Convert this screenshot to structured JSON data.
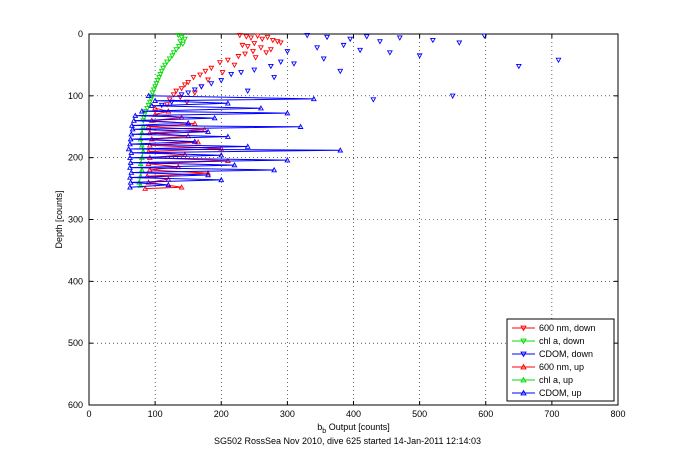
{
  "chart_data": {
    "type": "scatter",
    "xlabel_main": "b",
    "xlabel_sub": "b",
    "xlabel_rest": " Output [counts]",
    "ylabel": "Depth [counts]",
    "caption": "SG502 RossSea Nov 2010, dive 625 started 14-Jan-2011 12:14:03",
    "xlim": [
      0,
      800
    ],
    "ylim": [
      0,
      600
    ],
    "y_reversed": true,
    "grid": true,
    "legend_position": "bottom-right",
    "xticks": [
      0,
      100,
      200,
      300,
      400,
      500,
      600,
      700,
      800
    ],
    "yticks": [
      0,
      100,
      200,
      300,
      400,
      500,
      600
    ],
    "series": [
      {
        "name": "600 nm, down",
        "color": "#ff0000",
        "marker": "triangle-down",
        "line": false,
        "points": [
          [
            228,
            2
          ],
          [
            238,
            4
          ],
          [
            245,
            6
          ],
          [
            255,
            3
          ],
          [
            262,
            8
          ],
          [
            270,
            5
          ],
          [
            278,
            10
          ],
          [
            285,
            12
          ],
          [
            250,
            15
          ],
          [
            240,
            20
          ],
          [
            232,
            18
          ],
          [
            260,
            22
          ],
          [
            275,
            25
          ],
          [
            248,
            28
          ],
          [
            236,
            32
          ],
          [
            226,
            36
          ],
          [
            252,
            38
          ],
          [
            268,
            30
          ],
          [
            290,
            14
          ],
          [
            210,
            42
          ],
          [
            198,
            46
          ],
          [
            220,
            50
          ],
          [
            185,
            55
          ],
          [
            176,
            60
          ],
          [
            202,
            62
          ],
          [
            168,
            66
          ],
          [
            158,
            70
          ],
          [
            180,
            74
          ],
          [
            150,
            78
          ],
          [
            145,
            82
          ],
          [
            170,
            85
          ],
          [
            140,
            88
          ],
          [
            132,
            92
          ],
          [
            160,
            95
          ],
          [
            128,
            98
          ],
          [
            138,
            102
          ],
          [
            122,
            106
          ],
          [
            148,
            110
          ],
          [
            118,
            114
          ]
        ]
      },
      {
        "name": "chl a, down",
        "color": "#00dd00",
        "marker": "triangle-down",
        "line": false,
        "points": [
          [
            135,
            2
          ],
          [
            140,
            5
          ],
          [
            145,
            8
          ],
          [
            138,
            12
          ],
          [
            142,
            16
          ],
          [
            136,
            20
          ],
          [
            132,
            25
          ],
          [
            128,
            30
          ],
          [
            126,
            35
          ],
          [
            122,
            40
          ],
          [
            118,
            45
          ],
          [
            115,
            50
          ],
          [
            112,
            55
          ],
          [
            110,
            60
          ],
          [
            108,
            65
          ],
          [
            106,
            70
          ],
          [
            104,
            75
          ],
          [
            102,
            80
          ],
          [
            100,
            85
          ],
          [
            98,
            90
          ],
          [
            96,
            95
          ],
          [
            95,
            100
          ],
          [
            94,
            105
          ],
          [
            92,
            110
          ],
          [
            90,
            115
          ],
          [
            88,
            120
          ],
          [
            86,
            125
          ],
          [
            84,
            130
          ],
          [
            83,
            135
          ],
          [
            82,
            140
          ]
        ]
      },
      {
        "name": "CDOM, down",
        "color": "#0000ff",
        "marker": "triangle-down",
        "line": false,
        "points": [
          [
            330,
            2
          ],
          [
            360,
            5
          ],
          [
            395,
            8
          ],
          [
            420,
            4
          ],
          [
            440,
            12
          ],
          [
            470,
            6
          ],
          [
            520,
            10
          ],
          [
            560,
            14
          ],
          [
            598,
            3
          ],
          [
            650,
            52
          ],
          [
            710,
            42
          ],
          [
            385,
            18
          ],
          [
            345,
            22
          ],
          [
            300,
            28
          ],
          [
            410,
            26
          ],
          [
            455,
            30
          ],
          [
            500,
            35
          ],
          [
            355,
            40
          ],
          [
            290,
            45
          ],
          [
            310,
            48
          ],
          [
            275,
            52
          ],
          [
            250,
            58
          ],
          [
            230,
            62
          ],
          [
            215,
            65
          ],
          [
            380,
            60
          ],
          [
            280,
            70
          ],
          [
            200,
            75
          ],
          [
            185,
            80
          ],
          [
            170,
            85
          ],
          [
            160,
            90
          ],
          [
            240,
            92
          ],
          [
            150,
            95
          ],
          [
            140,
            98
          ],
          [
            550,
            100
          ],
          [
            430,
            106
          ],
          [
            125,
            110
          ],
          [
            110,
            115
          ]
        ]
      },
      {
        "name": "600 nm, up",
        "color": "#ff0000",
        "marker": "triangle-up",
        "line": true,
        "points": [
          [
            100,
            120
          ],
          [
            120,
            125
          ],
          [
            100,
            130
          ],
          [
            140,
            135
          ],
          [
            95,
            140
          ],
          [
            160,
            145
          ],
          [
            90,
            150
          ],
          [
            175,
            155
          ],
          [
            92,
            160
          ],
          [
            150,
            165
          ],
          [
            95,
            170
          ],
          [
            165,
            175
          ],
          [
            92,
            180
          ],
          [
            200,
            185
          ],
          [
            90,
            190
          ],
          [
            145,
            195
          ],
          [
            92,
            200
          ],
          [
            210,
            205
          ],
          [
            90,
            210
          ],
          [
            135,
            215
          ],
          [
            92,
            220
          ],
          [
            180,
            225
          ],
          [
            88,
            230
          ],
          [
            120,
            235
          ],
          [
            90,
            240
          ],
          [
            140,
            248
          ],
          [
            85,
            250
          ]
        ]
      },
      {
        "name": "chl a, up",
        "color": "#00dd00",
        "marker": "triangle-up",
        "line": true,
        "points": [
          [
            82,
            150
          ],
          [
            80,
            160
          ],
          [
            78,
            170
          ],
          [
            80,
            180
          ],
          [
            82,
            190
          ],
          [
            80,
            200
          ],
          [
            78,
            210
          ],
          [
            80,
            220
          ],
          [
            78,
            230
          ],
          [
            76,
            240
          ],
          [
            78,
            245
          ]
        ]
      },
      {
        "name": "CDOM, up",
        "color": "#0000ff",
        "marker": "triangle-up",
        "line": true,
        "points": [
          [
            90,
            100
          ],
          [
            340,
            105
          ],
          [
            100,
            108
          ],
          [
            210,
            112
          ],
          [
            95,
            116
          ],
          [
            260,
            120
          ],
          [
            80,
            125
          ],
          [
            300,
            128
          ],
          [
            70,
            132
          ],
          [
            190,
            136
          ],
          [
            68,
            140
          ],
          [
            150,
            144
          ],
          [
            65,
            148
          ],
          [
            320,
            150
          ],
          [
            66,
            154
          ],
          [
            180,
            158
          ],
          [
            64,
            162
          ],
          [
            210,
            166
          ],
          [
            63,
            170
          ],
          [
            160,
            174
          ],
          [
            62,
            178
          ],
          [
            240,
            182
          ],
          [
            60,
            186
          ],
          [
            380,
            188
          ],
          [
            64,
            192
          ],
          [
            200,
            196
          ],
          [
            62,
            200
          ],
          [
            300,
            204
          ],
          [
            63,
            208
          ],
          [
            220,
            212
          ],
          [
            62,
            216
          ],
          [
            280,
            220
          ],
          [
            64,
            224
          ],
          [
            180,
            228
          ],
          [
            62,
            232
          ],
          [
            200,
            236
          ],
          [
            63,
            240
          ],
          [
            120,
            244
          ],
          [
            62,
            248
          ]
        ]
      }
    ]
  }
}
